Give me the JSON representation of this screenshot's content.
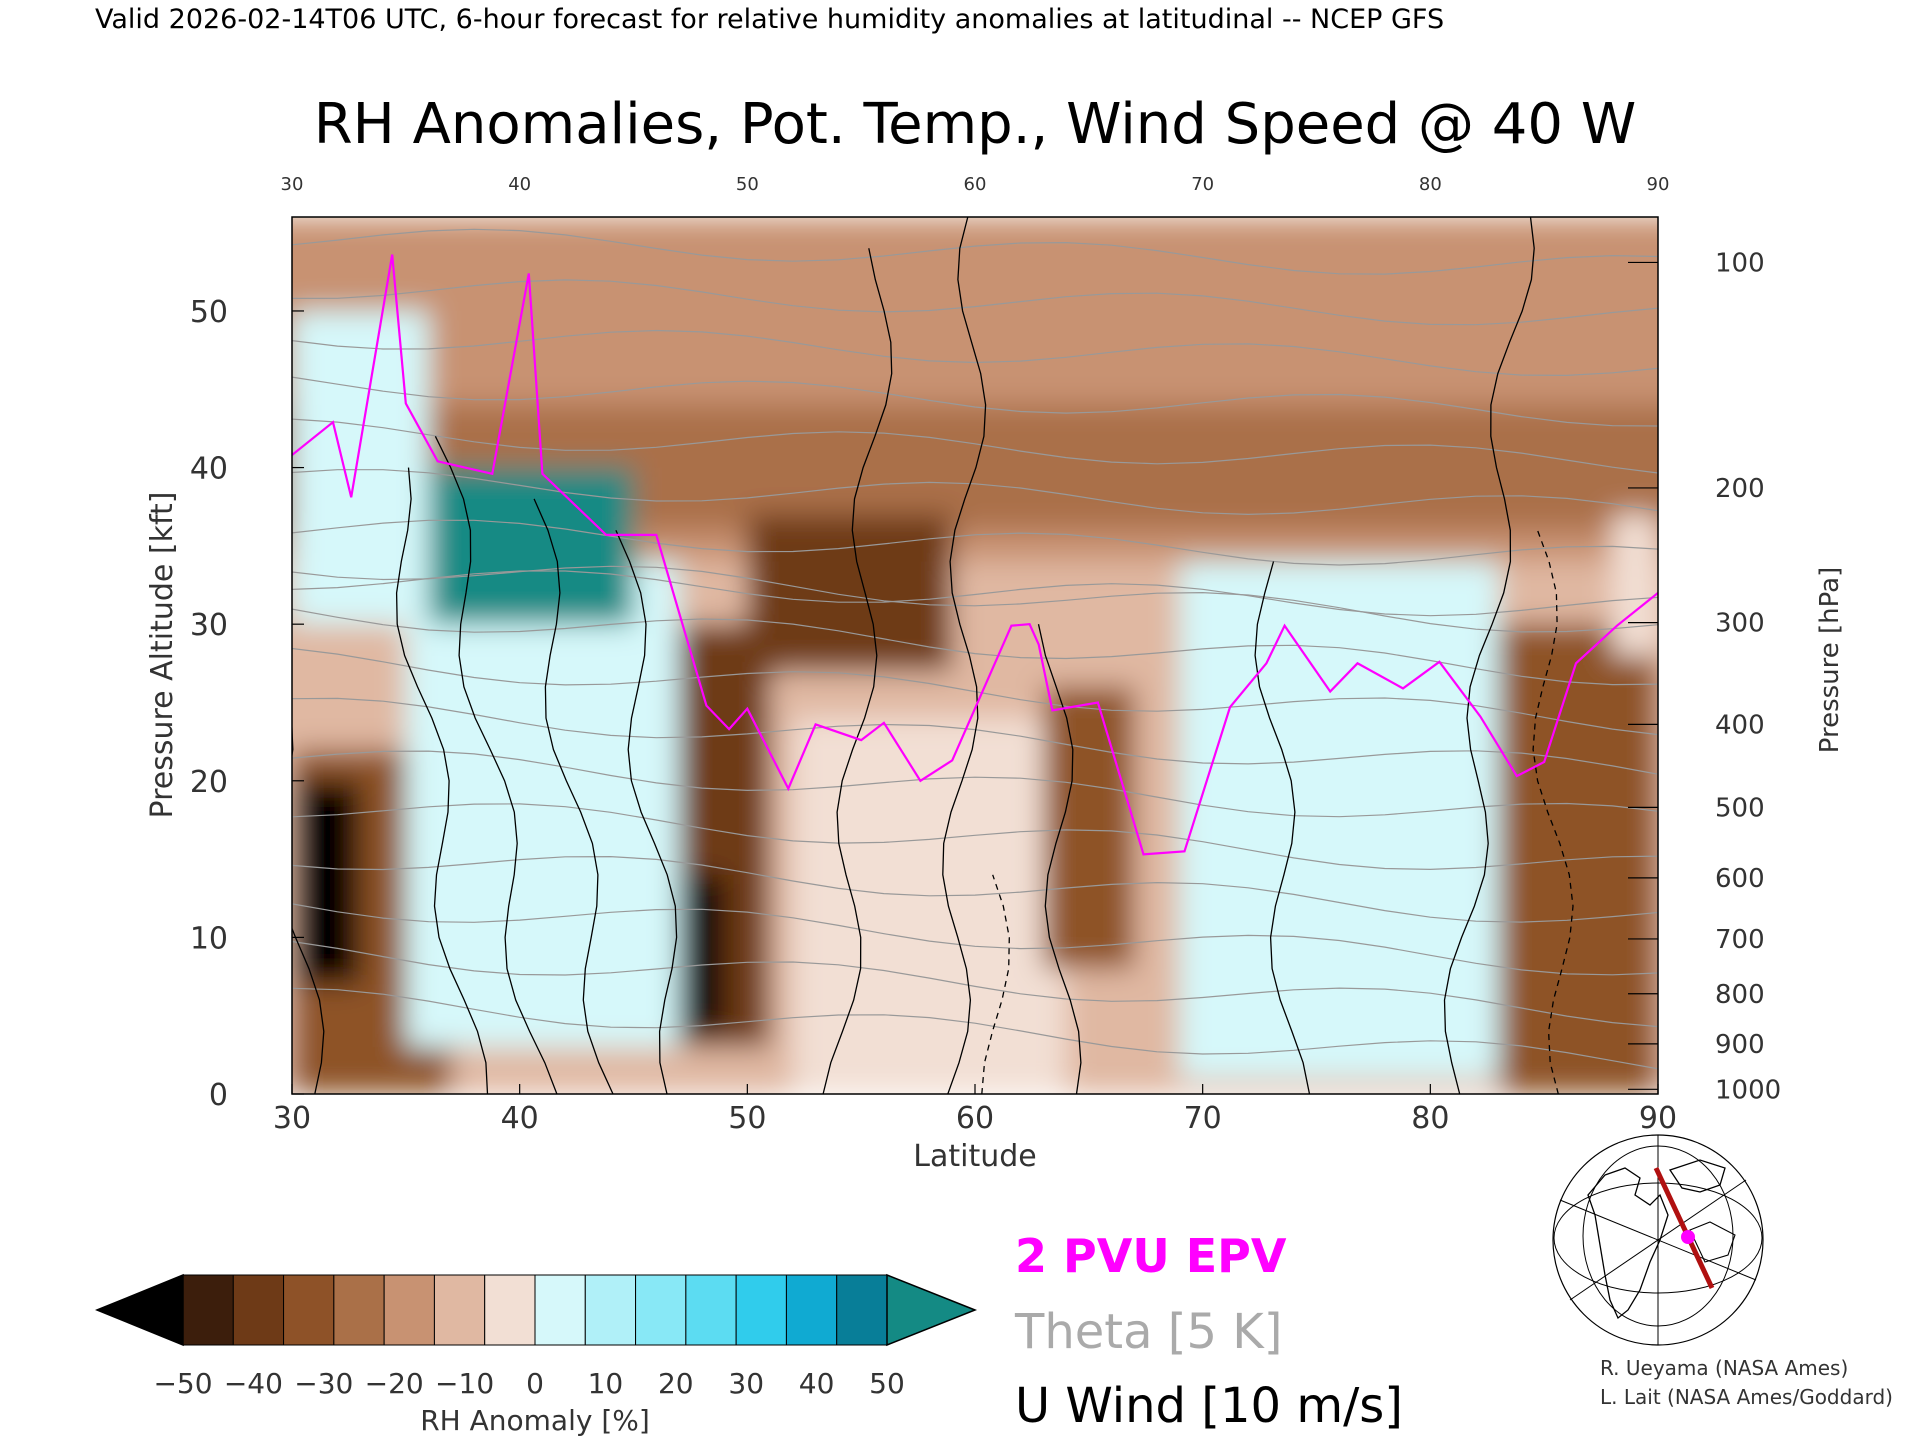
{
  "header": "Valid 2026-02-14T06 UTC, 6-hour forecast for relative humidity anomalies at latitudinal -- NCEP GFS",
  "title": "RH Anomalies, Pot. Temp., Wind Speed @ 40 W",
  "chart_data": {
    "type": "heatmap",
    "xlabel": "Latitude",
    "ylabel": "Pressure Altitude [kft]",
    "y2label": "Pressure [hPa]",
    "xlim": [
      30,
      90
    ],
    "ylim": [
      0,
      56
    ],
    "x_ticks": [
      30,
      40,
      50,
      60,
      70,
      80,
      90
    ],
    "y_ticks": [
      0,
      10,
      20,
      30,
      40,
      50
    ],
    "pressure_ticks": [
      {
        "hpa": "100",
        "kft": 53.1
      },
      {
        "hpa": "200",
        "kft": 38.7
      },
      {
        "hpa": "300",
        "kft": 30.1
      },
      {
        "hpa": "400",
        "kft": 23.6
      },
      {
        "hpa": "500",
        "kft": 18.3
      },
      {
        "hpa": "600",
        "kft": 13.8
      },
      {
        "hpa": "700",
        "kft": 9.9
      },
      {
        "hpa": "800",
        "kft": 6.4
      },
      {
        "hpa": "900",
        "kft": 3.2
      },
      {
        "hpa": "1000",
        "kft": 0.3
      }
    ],
    "colorbar": {
      "label": "RH Anomaly [%]",
      "ticks": [
        "−50",
        "−40",
        "−30",
        "−20",
        "−10",
        "0",
        "10",
        "20",
        "30",
        "40",
        "50"
      ],
      "colors": [
        "#000000",
        "#3c1e0c",
        "#6e3a17",
        "#8e5228",
        "#aa7048",
        "#c89272",
        "#e0b8a2",
        "#f2dfd4",
        "#d6f8fa",
        "#b0f0f8",
        "#88e8f6",
        "#5cdcf2",
        "#30ccec",
        "#10aad2",
        "#087e98",
        "#148a84"
      ]
    },
    "legend": [
      {
        "label": "2 PVU EPV",
        "color": "#ff00ff"
      },
      {
        "label": "Theta [5 K]",
        "color": "#aaaaaa"
      },
      {
        "label": "U Wind [10 m/s]",
        "color": "#000000"
      }
    ],
    "rh_cells": [
      {
        "lat": [
          30,
          37
        ],
        "kft": [
          0,
          22
        ],
        "value": -25
      },
      {
        "lat": [
          30,
          33
        ],
        "kft": [
          7,
          20
        ],
        "value": -60
      },
      {
        "lat": [
          30,
          36
        ],
        "kft": [
          30,
          50
        ],
        "value": 25
      },
      {
        "lat": [
          35,
          47
        ],
        "kft": [
          3,
          34
        ],
        "value": 20
      },
      {
        "lat": [
          36,
          45
        ],
        "kft": [
          30,
          40
        ],
        "value": 50
      },
      {
        "lat": [
          47,
          51
        ],
        "kft": [
          3,
          30
        ],
        "value": -35
      },
      {
        "lat": [
          47,
          49
        ],
        "kft": [
          4,
          14
        ],
        "value": -60
      },
      {
        "lat": [
          50,
          59
        ],
        "kft": [
          27,
          37
        ],
        "value": -40
      },
      {
        "lat": [
          52,
          64
        ],
        "kft": [
          0,
          24
        ],
        "value": 18
      },
      {
        "lat": [
          63,
          67
        ],
        "kft": [
          8,
          26
        ],
        "value": -30
      },
      {
        "lat": [
          69,
          83
        ],
        "kft": [
          1,
          34
        ],
        "value": 20
      },
      {
        "lat": [
          83,
          90
        ],
        "kft": [
          0,
          30
        ],
        "value": -25
      },
      {
        "lat": [
          88,
          90
        ],
        "kft": [
          28,
          37
        ],
        "value": 15
      }
    ],
    "epv_2pvu": [
      [
        30,
        40.8
      ],
      [
        31.8,
        42.9
      ],
      [
        32.6,
        38.1
      ],
      [
        34.4,
        53.6
      ],
      [
        35,
        44.1
      ],
      [
        36.4,
        40.4
      ],
      [
        38.8,
        39.6
      ],
      [
        40.4,
        52.4
      ],
      [
        41,
        39.6
      ],
      [
        43.8,
        35.7
      ],
      [
        46,
        35.7
      ],
      [
        48.2,
        24.8
      ],
      [
        49.2,
        23.3
      ],
      [
        50,
        24.6
      ],
      [
        51.8,
        19.5
      ],
      [
        53,
        23.6
      ],
      [
        55,
        22.6
      ],
      [
        56,
        23.7
      ],
      [
        57.6,
        20
      ],
      [
        59,
        21.3
      ],
      [
        61.6,
        29.9
      ],
      [
        62.4,
        30
      ],
      [
        62.8,
        28.7
      ],
      [
        63.4,
        24.5
      ],
      [
        65.4,
        25
      ],
      [
        67.4,
        15.3
      ],
      [
        69.2,
        15.5
      ],
      [
        71.2,
        24.7
      ],
      [
        72.8,
        27.5
      ],
      [
        73.6,
        29.9
      ],
      [
        75.6,
        25.7
      ],
      [
        76.8,
        27.5
      ],
      [
        78.8,
        25.9
      ],
      [
        80.4,
        27.6
      ],
      [
        82.2,
        24.1
      ],
      [
        83.8,
        20.3
      ],
      [
        85,
        21.2
      ],
      [
        86.4,
        27.5
      ],
      [
        88.2,
        29.9
      ],
      [
        90,
        32.0
      ]
    ],
    "u_wind_isotachs_mps": [
      0,
      10,
      20,
      30,
      40,
      50,
      60
    ],
    "theta_isentropes_K": [
      250,
      260,
      270,
      280,
      290,
      300,
      310,
      320,
      330,
      340,
      350,
      360,
      370,
      380,
      390,
      400,
      410,
      420
    ]
  },
  "credits": [
    "R. Ueyama (NASA Ames)",
    "L. Lait (NASA Ames/Goddard)"
  ]
}
